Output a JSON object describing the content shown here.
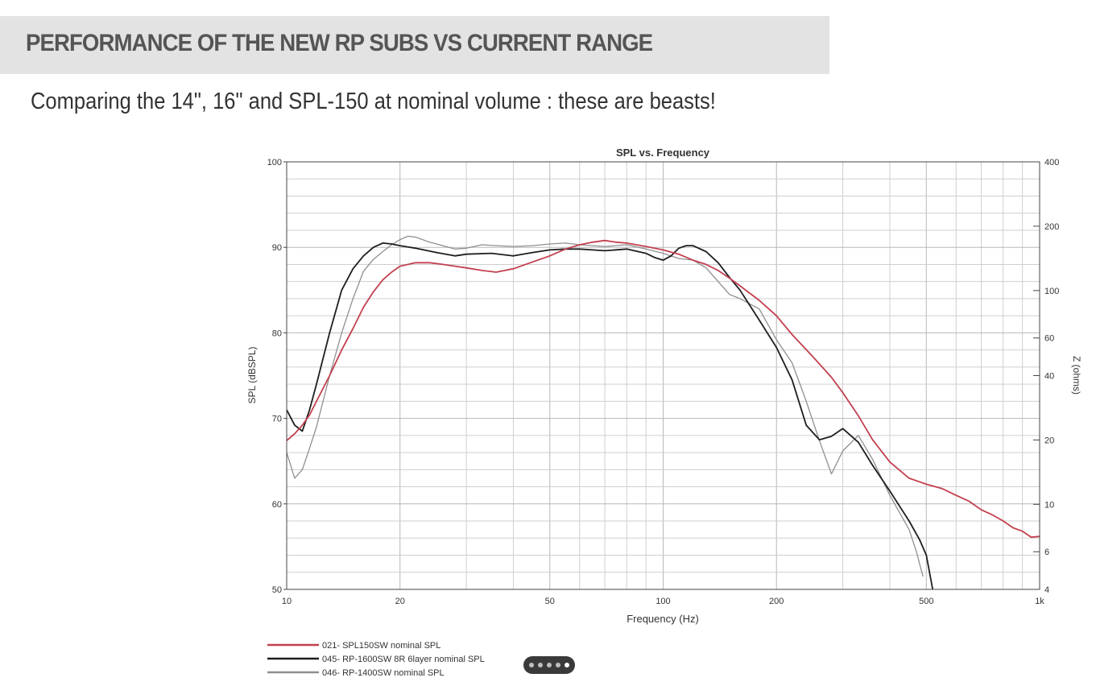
{
  "slide": {
    "title": "PERFORMANCE OF THE NEW RP SUBS VS CURRENT RANGE",
    "subtitle": "Comparing the 14\", 16\" and SPL-150 at nominal volume : these are beasts!"
  },
  "pager": {
    "dot_count": 5,
    "active_index": 4
  },
  "colors": {
    "spl150": "#c2404f",
    "rp1600": "#1e1e1e",
    "rp1400": "#8f8f8f",
    "grid": "#cfcfcf"
  },
  "chart_data": {
    "type": "line",
    "title": "SPL vs. Frequency",
    "xlabel": "Frequency (Hz)",
    "ylabel": "SPL (dBSPL)",
    "y2label": "Z (ohms)",
    "xscale": "log",
    "xlim": [
      10,
      1000
    ],
    "ylim": [
      50,
      100
    ],
    "y2lim": [
      4,
      400
    ],
    "y2scale": "log",
    "grid": true,
    "legend_position": "bottom-left",
    "xticks": [
      10,
      20,
      50,
      100,
      200,
      500,
      1000
    ],
    "xtick_labels": [
      "10",
      "20",
      "50",
      "100",
      "200",
      "500",
      "1k"
    ],
    "yticks": [
      50,
      60,
      70,
      80,
      90,
      100
    ],
    "y2ticks": [
      4,
      6,
      10,
      20,
      40,
      60,
      100,
      200,
      400
    ],
    "series": [
      {
        "name": "021- SPL150SW nominal SPL",
        "color": "#c2404f",
        "x": [
          10,
          10.5,
          11,
          11.5,
          12,
          13,
          14,
          15,
          16,
          17,
          18,
          19,
          20,
          22,
          24,
          26,
          28,
          30,
          33,
          36,
          40,
          45,
          50,
          55,
          60,
          65,
          70,
          75,
          80,
          90,
          100,
          110,
          120,
          130,
          140,
          150,
          160,
          180,
          200,
          220,
          250,
          280,
          300,
          330,
          360,
          400,
          450,
          500,
          550,
          600,
          650,
          700,
          750,
          800,
          850,
          900,
          950,
          1000
        ],
        "y": [
          67.4,
          68.2,
          69.2,
          70.4,
          72,
          75,
          78,
          80.5,
          83,
          84.8,
          86.2,
          87.1,
          87.8,
          88.2,
          88.2,
          88,
          87.8,
          87.6,
          87.3,
          87.1,
          87.5,
          88.3,
          89,
          89.8,
          90.3,
          90.6,
          90.8,
          90.6,
          90.5,
          90.1,
          89.7,
          89.2,
          88.5,
          88,
          87.3,
          86.4,
          85.5,
          83.8,
          82,
          79.8,
          77.2,
          74.8,
          73,
          70.3,
          67.5,
          64.9,
          63,
          62.3,
          61.8,
          61,
          60.3,
          59.3,
          58.7,
          58,
          57.2,
          56.8,
          56.1,
          56.2
        ]
      },
      {
        "name": "045- RP-1600SW 8R 6layer nominal  SPL",
        "color": "#1e1e1e",
        "x": [
          10,
          10.5,
          11,
          11.5,
          12,
          13,
          14,
          15,
          16,
          17,
          18,
          19,
          20,
          22,
          25,
          28,
          30,
          35,
          40,
          45,
          50,
          55,
          60,
          65,
          70,
          80,
          90,
          95,
          100,
          105,
          110,
          115,
          120,
          130,
          140,
          150,
          160,
          180,
          200,
          220,
          240,
          260,
          280,
          300,
          330,
          360,
          400,
          450,
          480,
          500,
          520
        ],
        "y": [
          71,
          69.2,
          68.5,
          71,
          74,
          80,
          85,
          87.5,
          89,
          90,
          90.5,
          90.4,
          90.2,
          89.9,
          89.4,
          89,
          89.2,
          89.3,
          89,
          89.4,
          89.7,
          89.8,
          89.8,
          89.7,
          89.6,
          89.8,
          89.3,
          88.8,
          88.5,
          89,
          89.9,
          90.2,
          90.2,
          89.5,
          88.2,
          86.5,
          85,
          81.5,
          78.3,
          74.5,
          69.2,
          67.5,
          67.9,
          68.8,
          67.2,
          64.5,
          61.5,
          58,
          55.8,
          54,
          50
        ]
      },
      {
        "name": "046- RP-1400SW nominal SPL",
        "color": "#8f8f8f",
        "x": [
          10,
          10.5,
          11,
          11.5,
          12,
          13,
          14,
          15,
          16,
          17,
          18,
          19,
          20,
          21,
          22,
          24,
          26,
          28,
          30,
          33,
          36,
          40,
          45,
          50,
          55,
          60,
          65,
          70,
          80,
          90,
          100,
          110,
          120,
          130,
          140,
          150,
          160,
          180,
          200,
          220,
          240,
          260,
          280,
          300,
          330,
          360,
          400,
          450,
          470,
          490
        ],
        "y": [
          66,
          63,
          64,
          66.5,
          69,
          75,
          80,
          84,
          87.2,
          88.6,
          89.5,
          90.3,
          90.9,
          91.3,
          91.2,
          90.6,
          90.2,
          89.8,
          89.9,
          90.3,
          90.2,
          90.1,
          90.2,
          90.4,
          90.5,
          90.3,
          90.2,
          90.1,
          90.3,
          89.8,
          89.3,
          88.7,
          88.5,
          87.6,
          86,
          84.5,
          84,
          82.8,
          79.2,
          76.5,
          72,
          67.4,
          63.5,
          66.2,
          68,
          65.2,
          61,
          57,
          54.5,
          51.5
        ]
      }
    ]
  }
}
